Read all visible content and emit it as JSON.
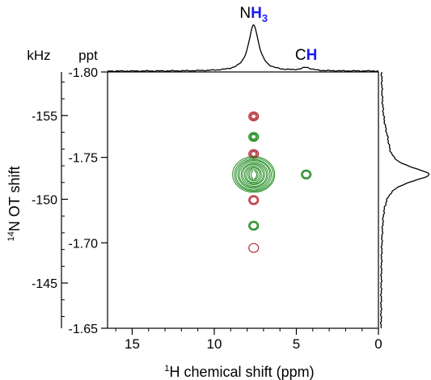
{
  "chart_data": {
    "type": "contour",
    "title": "",
    "xlabel_sup": "1",
    "xlabel_text": "H chemical shift (ppm)",
    "ylabel_sup": "14",
    "ylabel_text": "N OT shift",
    "left_axis_unit": "kHz",
    "right_axis_unit": "ppt",
    "x_ticks": [
      "15",
      "10",
      "5",
      "0"
    ],
    "x_tick_values": [
      15,
      10,
      5,
      0
    ],
    "xlim": [
      16.5,
      0
    ],
    "ppt_ticks": [
      "-1.80",
      "-1.75",
      "-1.70",
      "-1.65"
    ],
    "ppt_tick_values": [
      -1.8,
      -1.75,
      -1.7,
      -1.65
    ],
    "ppt_lim": [
      -1.8,
      -1.65
    ],
    "khz_ticks": [
      "-155",
      "-150",
      "-145"
    ],
    "khz_tick_values": [
      -155,
      -150,
      -145
    ],
    "top_projection_labels": [
      {
        "prefix": "N",
        "highlight": "H",
        "sub": "3",
        "x": 7.6
      },
      {
        "prefix": "C",
        "highlight": "H",
        "sub": "",
        "x": 4.4
      }
    ],
    "peaks": [
      {
        "x": 7.6,
        "ppt": -1.774,
        "sign": "negative",
        "levels": 3
      },
      {
        "x": 7.6,
        "ppt": -1.762,
        "sign": "positive",
        "levels": 3
      },
      {
        "x": 7.6,
        "ppt": -1.752,
        "sign": "negative",
        "levels": 3
      },
      {
        "x": 7.6,
        "ppt": -1.74,
        "sign": "positive",
        "levels": 12
      },
      {
        "x": 4.4,
        "ppt": -1.74,
        "sign": "positive",
        "levels": 2
      },
      {
        "x": 7.6,
        "ppt": -1.725,
        "sign": "negative",
        "levels": 2
      },
      {
        "x": 7.6,
        "ppt": -1.71,
        "sign": "positive",
        "levels": 2
      },
      {
        "x": 7.6,
        "ppt": -1.697,
        "sign": "negative",
        "levels": 1
      }
    ],
    "colors": {
      "positive": "#1f8a1f",
      "negative": "#b5303a",
      "label_highlight": "#1a1aff"
    }
  }
}
